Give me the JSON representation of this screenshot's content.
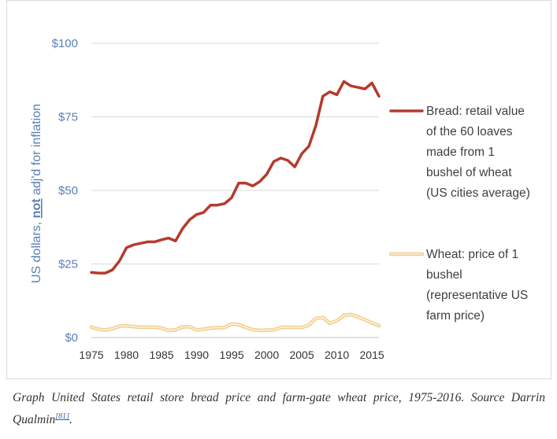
{
  "chart_data": {
    "type": "line",
    "ylabel_parts": [
      "US dollars, ",
      "not",
      " adj'd for inflation"
    ],
    "yticks": [
      {
        "value": 0,
        "label": "$0"
      },
      {
        "value": 25,
        "label": "$25"
      },
      {
        "value": 50,
        "label": "$50"
      },
      {
        "value": 75,
        "label": "$75"
      },
      {
        "value": 100,
        "label": "$100"
      }
    ],
    "xticks": [
      1975,
      1980,
      1985,
      1990,
      1995,
      2000,
      2005,
      2010,
      2015
    ],
    "xlim": [
      1975,
      2016
    ],
    "ylim": [
      0,
      100
    ],
    "grid": "horizontal",
    "legend_position": "right",
    "x": [
      1975,
      1976,
      1977,
      1978,
      1979,
      1980,
      1981,
      1982,
      1983,
      1984,
      1985,
      1986,
      1987,
      1988,
      1989,
      1990,
      1991,
      1992,
      1993,
      1994,
      1995,
      1996,
      1997,
      1998,
      1999,
      2000,
      2001,
      2002,
      2003,
      2004,
      2005,
      2006,
      2007,
      2008,
      2009,
      2010,
      2011,
      2012,
      2013,
      2014,
      2015,
      2016
    ],
    "series": [
      {
        "name_lines": [
          "Bread: retail value",
          "of the 60 loaves",
          "made from 1",
          "bushel of wheat",
          "(US cities average)"
        ],
        "color": "#b53a2c",
        "style": "solid",
        "values": [
          22.1,
          21.9,
          21.9,
          23.0,
          26.0,
          30.5,
          31.5,
          32.0,
          32.5,
          32.5,
          33.2,
          33.8,
          32.8,
          37.0,
          40.0,
          41.8,
          42.5,
          45.0,
          45.0,
          45.5,
          47.5,
          52.5,
          52.5,
          51.5,
          53.0,
          55.5,
          59.8,
          61.0,
          60.2,
          58.0,
          62.5,
          65.0,
          72.0,
          82.0,
          83.5,
          82.5,
          87.0,
          85.5,
          85.0,
          84.5,
          86.5,
          82.0
        ]
      },
      {
        "name_lines": [
          "Wheat: price of 1",
          "bushel",
          "(representative US",
          "farm price)"
        ],
        "color": "#f3cc8c",
        "style": "double",
        "values": [
          3.5,
          2.8,
          2.5,
          3.0,
          3.8,
          4.0,
          3.7,
          3.5,
          3.5,
          3.5,
          3.2,
          2.4,
          2.6,
          3.6,
          3.7,
          2.6,
          2.8,
          3.2,
          3.3,
          3.4,
          4.6,
          4.4,
          3.4,
          2.7,
          2.4,
          2.5,
          2.6,
          3.4,
          3.5,
          3.4,
          3.4,
          4.2,
          6.5,
          6.8,
          4.8,
          5.7,
          7.5,
          7.8,
          7.0,
          6.0,
          5.0,
          4.0
        ]
      }
    ]
  },
  "caption": {
    "text": "Graph United States retail store bread price and farm-gate wheat price, 1975-2016. Source Darrin Qualmin",
    "ref": "[81]",
    "end": "."
  }
}
